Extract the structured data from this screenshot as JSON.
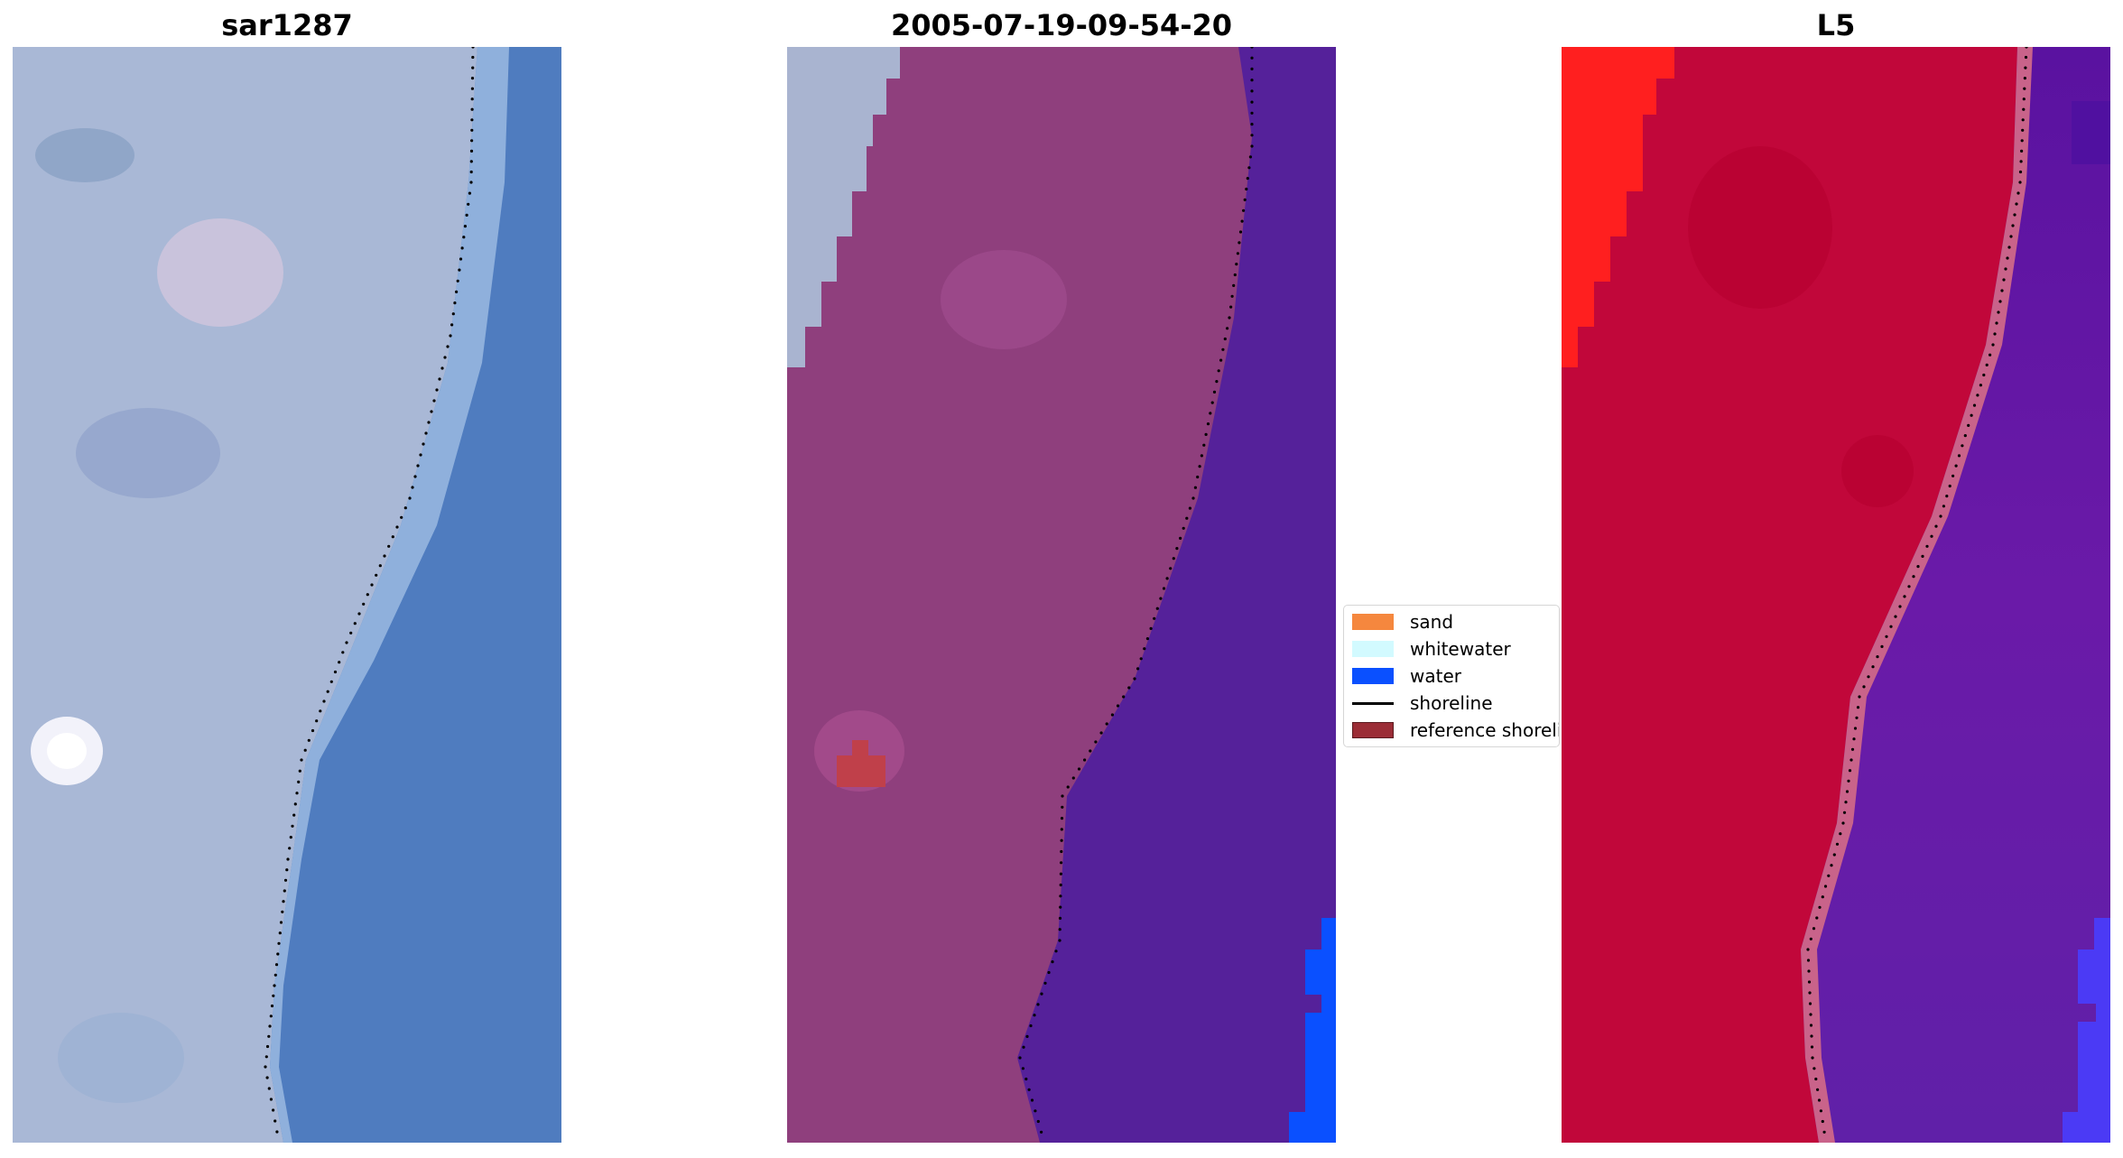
{
  "panels": [
    {
      "title": "sar1287"
    },
    {
      "title": "2005-07-19-09-54-20"
    },
    {
      "title": "L5"
    }
  ],
  "legend": {
    "items": [
      {
        "label": "sand",
        "color": "#f5873e",
        "kind": "patch"
      },
      {
        "label": "whitewater",
        "color": "#d2faff",
        "kind": "patch"
      },
      {
        "label": "water",
        "color": "#0a50ff",
        "kind": "patch"
      },
      {
        "label": "shoreline",
        "color": "#000000",
        "kind": "line"
      },
      {
        "label": "reference shoreline",
        "color": "#9b2d36",
        "kind": "patch"
      }
    ]
  },
  "colors": {
    "rgb_land": "#a9b8d6",
    "rgb_water": "#4f7cbf",
    "classified_land": "#8f3f7d",
    "classified_water": "#55219a",
    "classified_whitewater": "#a9b4d0",
    "index_land": "#c1073a",
    "index_sand": "#ff1f1f",
    "index_water": "#6519a0"
  }
}
